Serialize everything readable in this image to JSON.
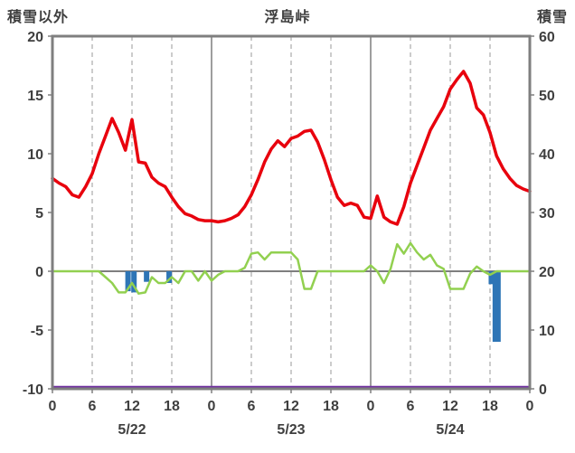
{
  "header": {
    "left": "積雪以外",
    "center": "浮島峠",
    "right": "積雪"
  },
  "chart_data": {
    "type": "line",
    "title": "浮島峠",
    "left_axis_label": "積雪以外",
    "right_axis_label": "積雪",
    "left_ylim": [
      -10,
      20
    ],
    "right_ylim": [
      0,
      60
    ],
    "x_unit": "hour",
    "x_range_hours": [
      0,
      72
    ],
    "axes": {
      "left_ticks": [
        20,
        15,
        10,
        5,
        0,
        -5,
        -10
      ],
      "right_ticks": [
        60,
        50,
        40,
        30,
        20,
        10,
        0
      ],
      "x_tick_hours": [
        0,
        6,
        12,
        18,
        24,
        30,
        36,
        42,
        48,
        54,
        60,
        66,
        72
      ],
      "x_tick_labels": [
        "0",
        "6",
        "12",
        "18",
        "0",
        "6",
        "12",
        "18",
        "0",
        "6",
        "12",
        "18",
        "0"
      ],
      "day_labels": [
        {
          "hour": 12,
          "label": "5/22"
        },
        {
          "hour": 36,
          "label": "5/23"
        },
        {
          "hour": 60,
          "label": "5/24"
        }
      ]
    },
    "grid": {
      "dashed_hours": [
        6,
        12,
        18,
        30,
        36,
        42,
        54,
        60,
        66
      ],
      "solid_hours": [
        24,
        48
      ]
    },
    "series_colors": {
      "red_line": "#e8000d",
      "green_line": "#92d050",
      "precip_bars": "#2e75b6",
      "snow_depth": "#7030a0",
      "frame": "#7f7f7f",
      "grid_dashed": "#9a9a9a"
    },
    "series": [
      {
        "name": "red-line",
        "color_key": "red_line",
        "axis": "left",
        "values": [
          7.9,
          7.5,
          7.2,
          6.5,
          6.3,
          7.2,
          8.3,
          10.0,
          11.5,
          13.0,
          11.8,
          10.3,
          12.9,
          9.3,
          9.2,
          8.0,
          7.5,
          7.2,
          6.3,
          5.5,
          4.9,
          4.7,
          4.4,
          4.3,
          4.3,
          4.2,
          4.3,
          4.5,
          4.8,
          5.5,
          6.5,
          7.8,
          9.3,
          10.4,
          11.1,
          10.6,
          11.3,
          11.5,
          11.9,
          12.0,
          11.0,
          9.5,
          7.8,
          6.3,
          5.6,
          5.8,
          5.6,
          4.6,
          4.5,
          6.4,
          4.6,
          4.2,
          4.0,
          5.5,
          7.5,
          9.0,
          10.5,
          12.0,
          13.0,
          14.0,
          15.5,
          16.3,
          17.0,
          16.0,
          13.9,
          13.3,
          11.8,
          9.8,
          8.7,
          7.9,
          7.3,
          7.0,
          6.8
        ]
      },
      {
        "name": "green-line",
        "color_key": "green_line",
        "axis": "left",
        "values": [
          0,
          0,
          0,
          0,
          0,
          0,
          0,
          0,
          -0.5,
          -1.0,
          -1.8,
          -1.8,
          -1.0,
          -1.9,
          -1.8,
          -0.5,
          -1.0,
          -1.0,
          -0.5,
          -1.0,
          0,
          0,
          -0.8,
          0,
          -0.8,
          -0.3,
          0,
          0,
          0,
          0.3,
          1.5,
          1.6,
          1.0,
          1.6,
          1.6,
          1.6,
          1.6,
          1.0,
          -1.5,
          -1.5,
          0,
          0,
          0,
          0,
          0,
          0,
          0,
          0,
          0.5,
          0,
          -1.0,
          0.2,
          2.3,
          1.5,
          2.4,
          1.6,
          1.0,
          1.4,
          0.5,
          0.2,
          -1.5,
          -1.5,
          -1.5,
          -0.2,
          0.4,
          0,
          -0.3,
          0,
          0,
          0,
          0,
          0,
          0
        ]
      }
    ],
    "precip_bars": [
      {
        "hour": 11.4,
        "value": 1.7
      },
      {
        "hour": 12.3,
        "value": 1.8
      },
      {
        "hour": 14.2,
        "value": 0.9
      },
      {
        "hour": 17.6,
        "value": 1.0
      },
      {
        "hour": 66.2,
        "value": 1.1
      },
      {
        "hour": 67.0,
        "value": 6.0
      }
    ],
    "snow_depth_right_value": 0
  }
}
